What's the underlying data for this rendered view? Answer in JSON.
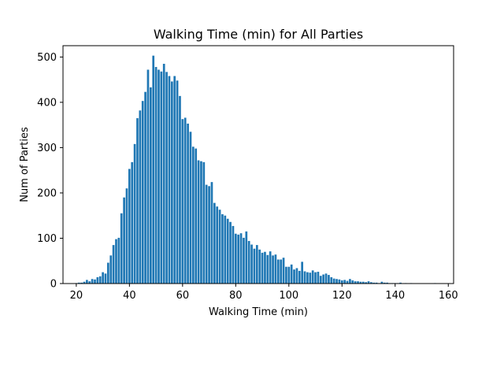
{
  "chart_data": {
    "type": "bar",
    "title": "Walking Time (min) for All Parties",
    "xlabel": "Walking Time (min)",
    "ylabel": "Num of Parties",
    "xlim": [
      15,
      162
    ],
    "ylim": [
      0,
      525
    ],
    "xticks": [
      20,
      40,
      60,
      80,
      100,
      120,
      140,
      160
    ],
    "yticks": [
      0,
      100,
      200,
      300,
      400,
      500
    ],
    "bar_color": "#1f77b4",
    "grid": false,
    "bins": [
      {
        "x": 20,
        "y": 1
      },
      {
        "x": 21,
        "y": 2
      },
      {
        "x": 22,
        "y": 2
      },
      {
        "x": 23,
        "y": 4
      },
      {
        "x": 24,
        "y": 8
      },
      {
        "x": 25,
        "y": 5
      },
      {
        "x": 26,
        "y": 10
      },
      {
        "x": 27,
        "y": 9
      },
      {
        "x": 28,
        "y": 14
      },
      {
        "x": 29,
        "y": 16
      },
      {
        "x": 30,
        "y": 25
      },
      {
        "x": 31,
        "y": 22
      },
      {
        "x": 32,
        "y": 46
      },
      {
        "x": 33,
        "y": 62
      },
      {
        "x": 34,
        "y": 85
      },
      {
        "x": 35,
        "y": 98
      },
      {
        "x": 36,
        "y": 101
      },
      {
        "x": 37,
        "y": 155
      },
      {
        "x": 38,
        "y": 190
      },
      {
        "x": 39,
        "y": 210
      },
      {
        "x": 40,
        "y": 253
      },
      {
        "x": 41,
        "y": 268
      },
      {
        "x": 42,
        "y": 308
      },
      {
        "x": 43,
        "y": 365
      },
      {
        "x": 44,
        "y": 382
      },
      {
        "x": 45,
        "y": 403
      },
      {
        "x": 46,
        "y": 423
      },
      {
        "x": 47,
        "y": 472
      },
      {
        "x": 48,
        "y": 433
      },
      {
        "x": 49,
        "y": 503
      },
      {
        "x": 50,
        "y": 478
      },
      {
        "x": 51,
        "y": 472
      },
      {
        "x": 52,
        "y": 468
      },
      {
        "x": 53,
        "y": 485
      },
      {
        "x": 54,
        "y": 467
      },
      {
        "x": 55,
        "y": 458
      },
      {
        "x": 56,
        "y": 446
      },
      {
        "x": 57,
        "y": 458
      },
      {
        "x": 58,
        "y": 448
      },
      {
        "x": 59,
        "y": 414
      },
      {
        "x": 60,
        "y": 363
      },
      {
        "x": 61,
        "y": 366
      },
      {
        "x": 62,
        "y": 353
      },
      {
        "x": 63,
        "y": 335
      },
      {
        "x": 64,
        "y": 302
      },
      {
        "x": 65,
        "y": 298
      },
      {
        "x": 66,
        "y": 272
      },
      {
        "x": 67,
        "y": 270
      },
      {
        "x": 68,
        "y": 268
      },
      {
        "x": 69,
        "y": 218
      },
      {
        "x": 70,
        "y": 215
      },
      {
        "x": 71,
        "y": 224
      },
      {
        "x": 72,
        "y": 178
      },
      {
        "x": 73,
        "y": 170
      },
      {
        "x": 74,
        "y": 163
      },
      {
        "x": 75,
        "y": 153
      },
      {
        "x": 76,
        "y": 150
      },
      {
        "x": 77,
        "y": 143
      },
      {
        "x": 78,
        "y": 136
      },
      {
        "x": 79,
        "y": 127
      },
      {
        "x": 80,
        "y": 110
      },
      {
        "x": 81,
        "y": 108
      },
      {
        "x": 82,
        "y": 111
      },
      {
        "x": 83,
        "y": 101
      },
      {
        "x": 84,
        "y": 115
      },
      {
        "x": 85,
        "y": 94
      },
      {
        "x": 86,
        "y": 86
      },
      {
        "x": 87,
        "y": 77
      },
      {
        "x": 88,
        "y": 85
      },
      {
        "x": 89,
        "y": 75
      },
      {
        "x": 90,
        "y": 68
      },
      {
        "x": 91,
        "y": 70
      },
      {
        "x": 92,
        "y": 63
      },
      {
        "x": 93,
        "y": 71
      },
      {
        "x": 94,
        "y": 62
      },
      {
        "x": 95,
        "y": 64
      },
      {
        "x": 96,
        "y": 53
      },
      {
        "x": 97,
        "y": 53
      },
      {
        "x": 98,
        "y": 57
      },
      {
        "x": 99,
        "y": 37
      },
      {
        "x": 100,
        "y": 37
      },
      {
        "x": 101,
        "y": 42
      },
      {
        "x": 102,
        "y": 31
      },
      {
        "x": 103,
        "y": 34
      },
      {
        "x": 104,
        "y": 28
      },
      {
        "x": 105,
        "y": 48
      },
      {
        "x": 106,
        "y": 27
      },
      {
        "x": 107,
        "y": 25
      },
      {
        "x": 108,
        "y": 24
      },
      {
        "x": 109,
        "y": 29
      },
      {
        "x": 110,
        "y": 25
      },
      {
        "x": 111,
        "y": 26
      },
      {
        "x": 112,
        "y": 17
      },
      {
        "x": 113,
        "y": 20
      },
      {
        "x": 114,
        "y": 22
      },
      {
        "x": 115,
        "y": 19
      },
      {
        "x": 116,
        "y": 14
      },
      {
        "x": 117,
        "y": 11
      },
      {
        "x": 118,
        "y": 10
      },
      {
        "x": 119,
        "y": 9
      },
      {
        "x": 120,
        "y": 7
      },
      {
        "x": 121,
        "y": 8
      },
      {
        "x": 122,
        "y": 6
      },
      {
        "x": 123,
        "y": 10
      },
      {
        "x": 124,
        "y": 7
      },
      {
        "x": 125,
        "y": 5
      },
      {
        "x": 126,
        "y": 5
      },
      {
        "x": 127,
        "y": 4
      },
      {
        "x": 128,
        "y": 4
      },
      {
        "x": 129,
        "y": 3
      },
      {
        "x": 130,
        "y": 5
      },
      {
        "x": 131,
        "y": 3
      },
      {
        "x": 132,
        "y": 2
      },
      {
        "x": 133,
        "y": 2
      },
      {
        "x": 134,
        "y": 1
      },
      {
        "x": 135,
        "y": 4
      },
      {
        "x": 136,
        "y": 2
      },
      {
        "x": 137,
        "y": 2
      },
      {
        "x": 138,
        "y": 1
      },
      {
        "x": 139,
        "y": 1
      },
      {
        "x": 140,
        "y": 1
      },
      {
        "x": 141,
        "y": 1
      },
      {
        "x": 142,
        "y": 2
      },
      {
        "x": 144,
        "y": 1
      },
      {
        "x": 146,
        "y": 1
      },
      {
        "x": 155,
        "y": 1
      }
    ]
  }
}
